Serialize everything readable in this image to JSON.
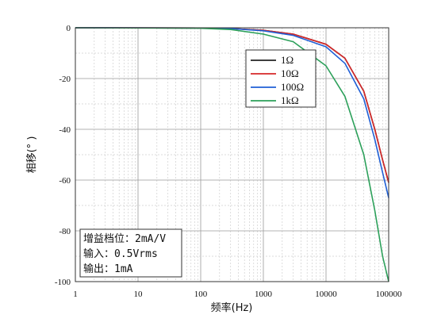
{
  "chart_data": {
    "type": "line",
    "xlabel": "频率(Hz)",
    "ylabel": "相移(° )",
    "xscale": "log",
    "xlim": [
      1,
      100000
    ],
    "ylim": [
      -100,
      0
    ],
    "grid": true,
    "legend_position": "upper-right",
    "x_tick_labels": [
      "1",
      "10",
      "100",
      "1000",
      "10000",
      "100000"
    ],
    "y_tick_labels": [
      "0",
      "-20",
      "-40",
      "-60",
      "-80",
      "-100"
    ],
    "series": [
      {
        "name": "1Ω",
        "color": "#222222",
        "x": [
          1,
          100,
          300,
          1000,
          3000,
          10000,
          20000,
          40000,
          60000,
          80000,
          100000
        ],
        "y": [
          0,
          -0.1,
          -0.3,
          -1,
          -2.5,
          -6.5,
          -12,
          -25,
          -40,
          -52,
          -61
        ]
      },
      {
        "name": "10Ω",
        "color": "#d62728",
        "x": [
          1,
          100,
          300,
          1000,
          3000,
          10000,
          20000,
          40000,
          60000,
          80000,
          100000
        ],
        "y": [
          0,
          -0.1,
          -0.3,
          -1,
          -2.5,
          -6.5,
          -12,
          -25,
          -40,
          -52,
          -61
        ]
      },
      {
        "name": "100Ω",
        "color": "#1f5fd6",
        "x": [
          1,
          100,
          300,
          1000,
          3000,
          10000,
          20000,
          40000,
          60000,
          80000,
          100000
        ],
        "y": [
          0,
          -0.1,
          -0.3,
          -1.2,
          -3,
          -7.5,
          -14,
          -28,
          -44,
          -57,
          -67
        ]
      },
      {
        "name": "1kΩ",
        "color": "#2ca05a",
        "x": [
          1,
          100,
          300,
          1000,
          3000,
          10000,
          20000,
          40000,
          60000,
          80000,
          100000
        ],
        "y": [
          0,
          -0.2,
          -0.7,
          -2.5,
          -5.5,
          -15,
          -27,
          -50,
          -72,
          -90,
          -100
        ]
      }
    ],
    "annotation": {
      "lines": [
        "增益档位：2mA/V",
        "输入：0.5Vrms",
        "输出：1mA"
      ]
    }
  }
}
